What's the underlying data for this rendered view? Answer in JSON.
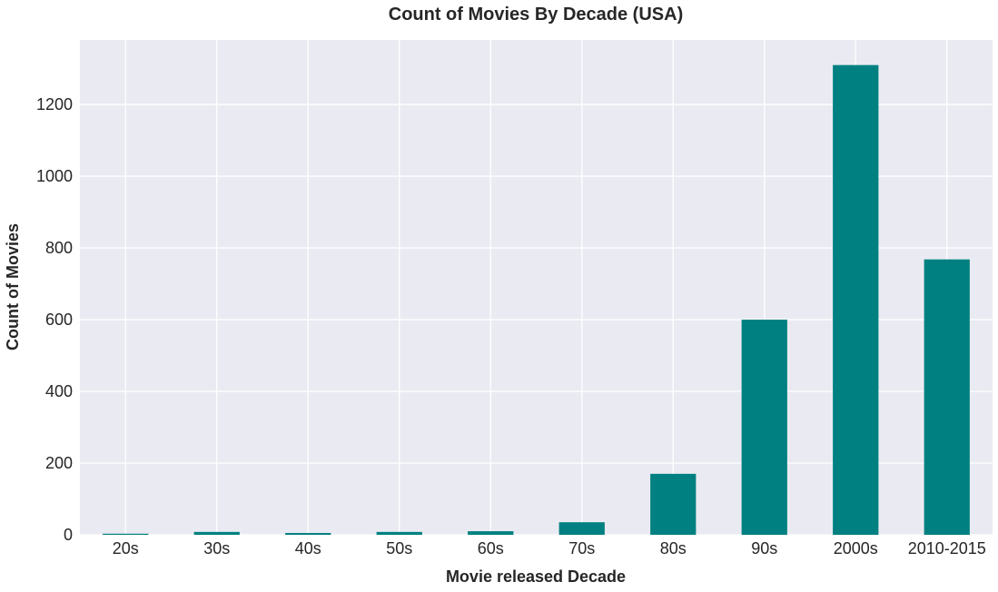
{
  "chart_data": {
    "type": "bar",
    "title": "Count of Movies By Decade (USA)",
    "xlabel": "Movie released Decade",
    "ylabel": "Count of Movies",
    "categories": [
      "20s",
      "30s",
      "40s",
      "50s",
      "60s",
      "70s",
      "80s",
      "90s",
      "2000s",
      "2010-2015"
    ],
    "values": [
      3,
      8,
      5,
      8,
      10,
      35,
      170,
      600,
      1310,
      768
    ],
    "ylim": [
      0,
      1380
    ],
    "yticks": [
      0,
      200,
      400,
      600,
      800,
      1000,
      1200
    ],
    "grid": true,
    "colors": {
      "bar": "#008080",
      "background": "#eaeaf2",
      "grid": "#ffffff"
    }
  }
}
